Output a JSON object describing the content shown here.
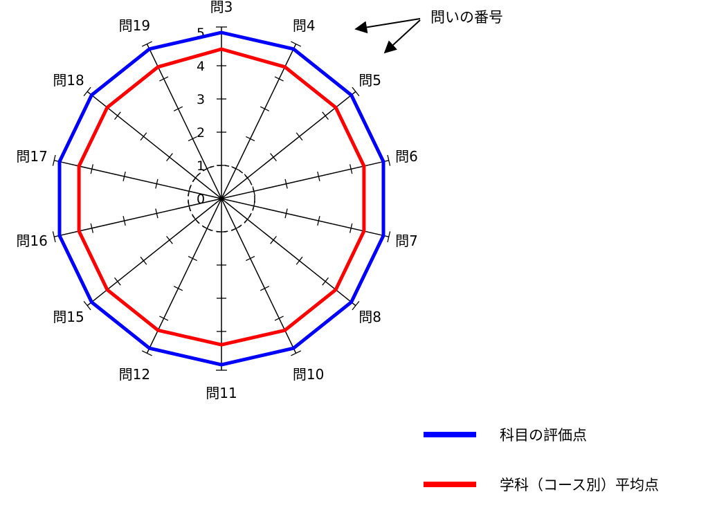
{
  "chart_data": {
    "type": "radar",
    "axes": [
      "問3",
      "問4",
      "問5",
      "問6",
      "問7",
      "問8",
      "問10",
      "問11",
      "問12",
      "問15",
      "問16",
      "問17",
      "問18",
      "問19"
    ],
    "tick_labels": [
      "0",
      "1",
      "2",
      "3",
      "4",
      "5"
    ],
    "rlim": [
      0,
      5
    ],
    "series": [
      {
        "name": "科目の評価点",
        "color": "#0000ff",
        "values": [
          5.0,
          5.0,
          5.0,
          5.0,
          5.0,
          5.0,
          5.0,
          5.0,
          5.0,
          5.0,
          5.0,
          5.0,
          5.0,
          5.0
        ]
      },
      {
        "name": "学科（コース別）平均点",
        "color": "#ff0000",
        "values": [
          4.5,
          4.4,
          4.4,
          4.4,
          4.4,
          4.4,
          4.4,
          4.4,
          4.4,
          4.4,
          4.4,
          4.4,
          4.4,
          4.4
        ]
      }
    ],
    "annotation": "問いの番号",
    "legend_position": "bottom-right"
  }
}
